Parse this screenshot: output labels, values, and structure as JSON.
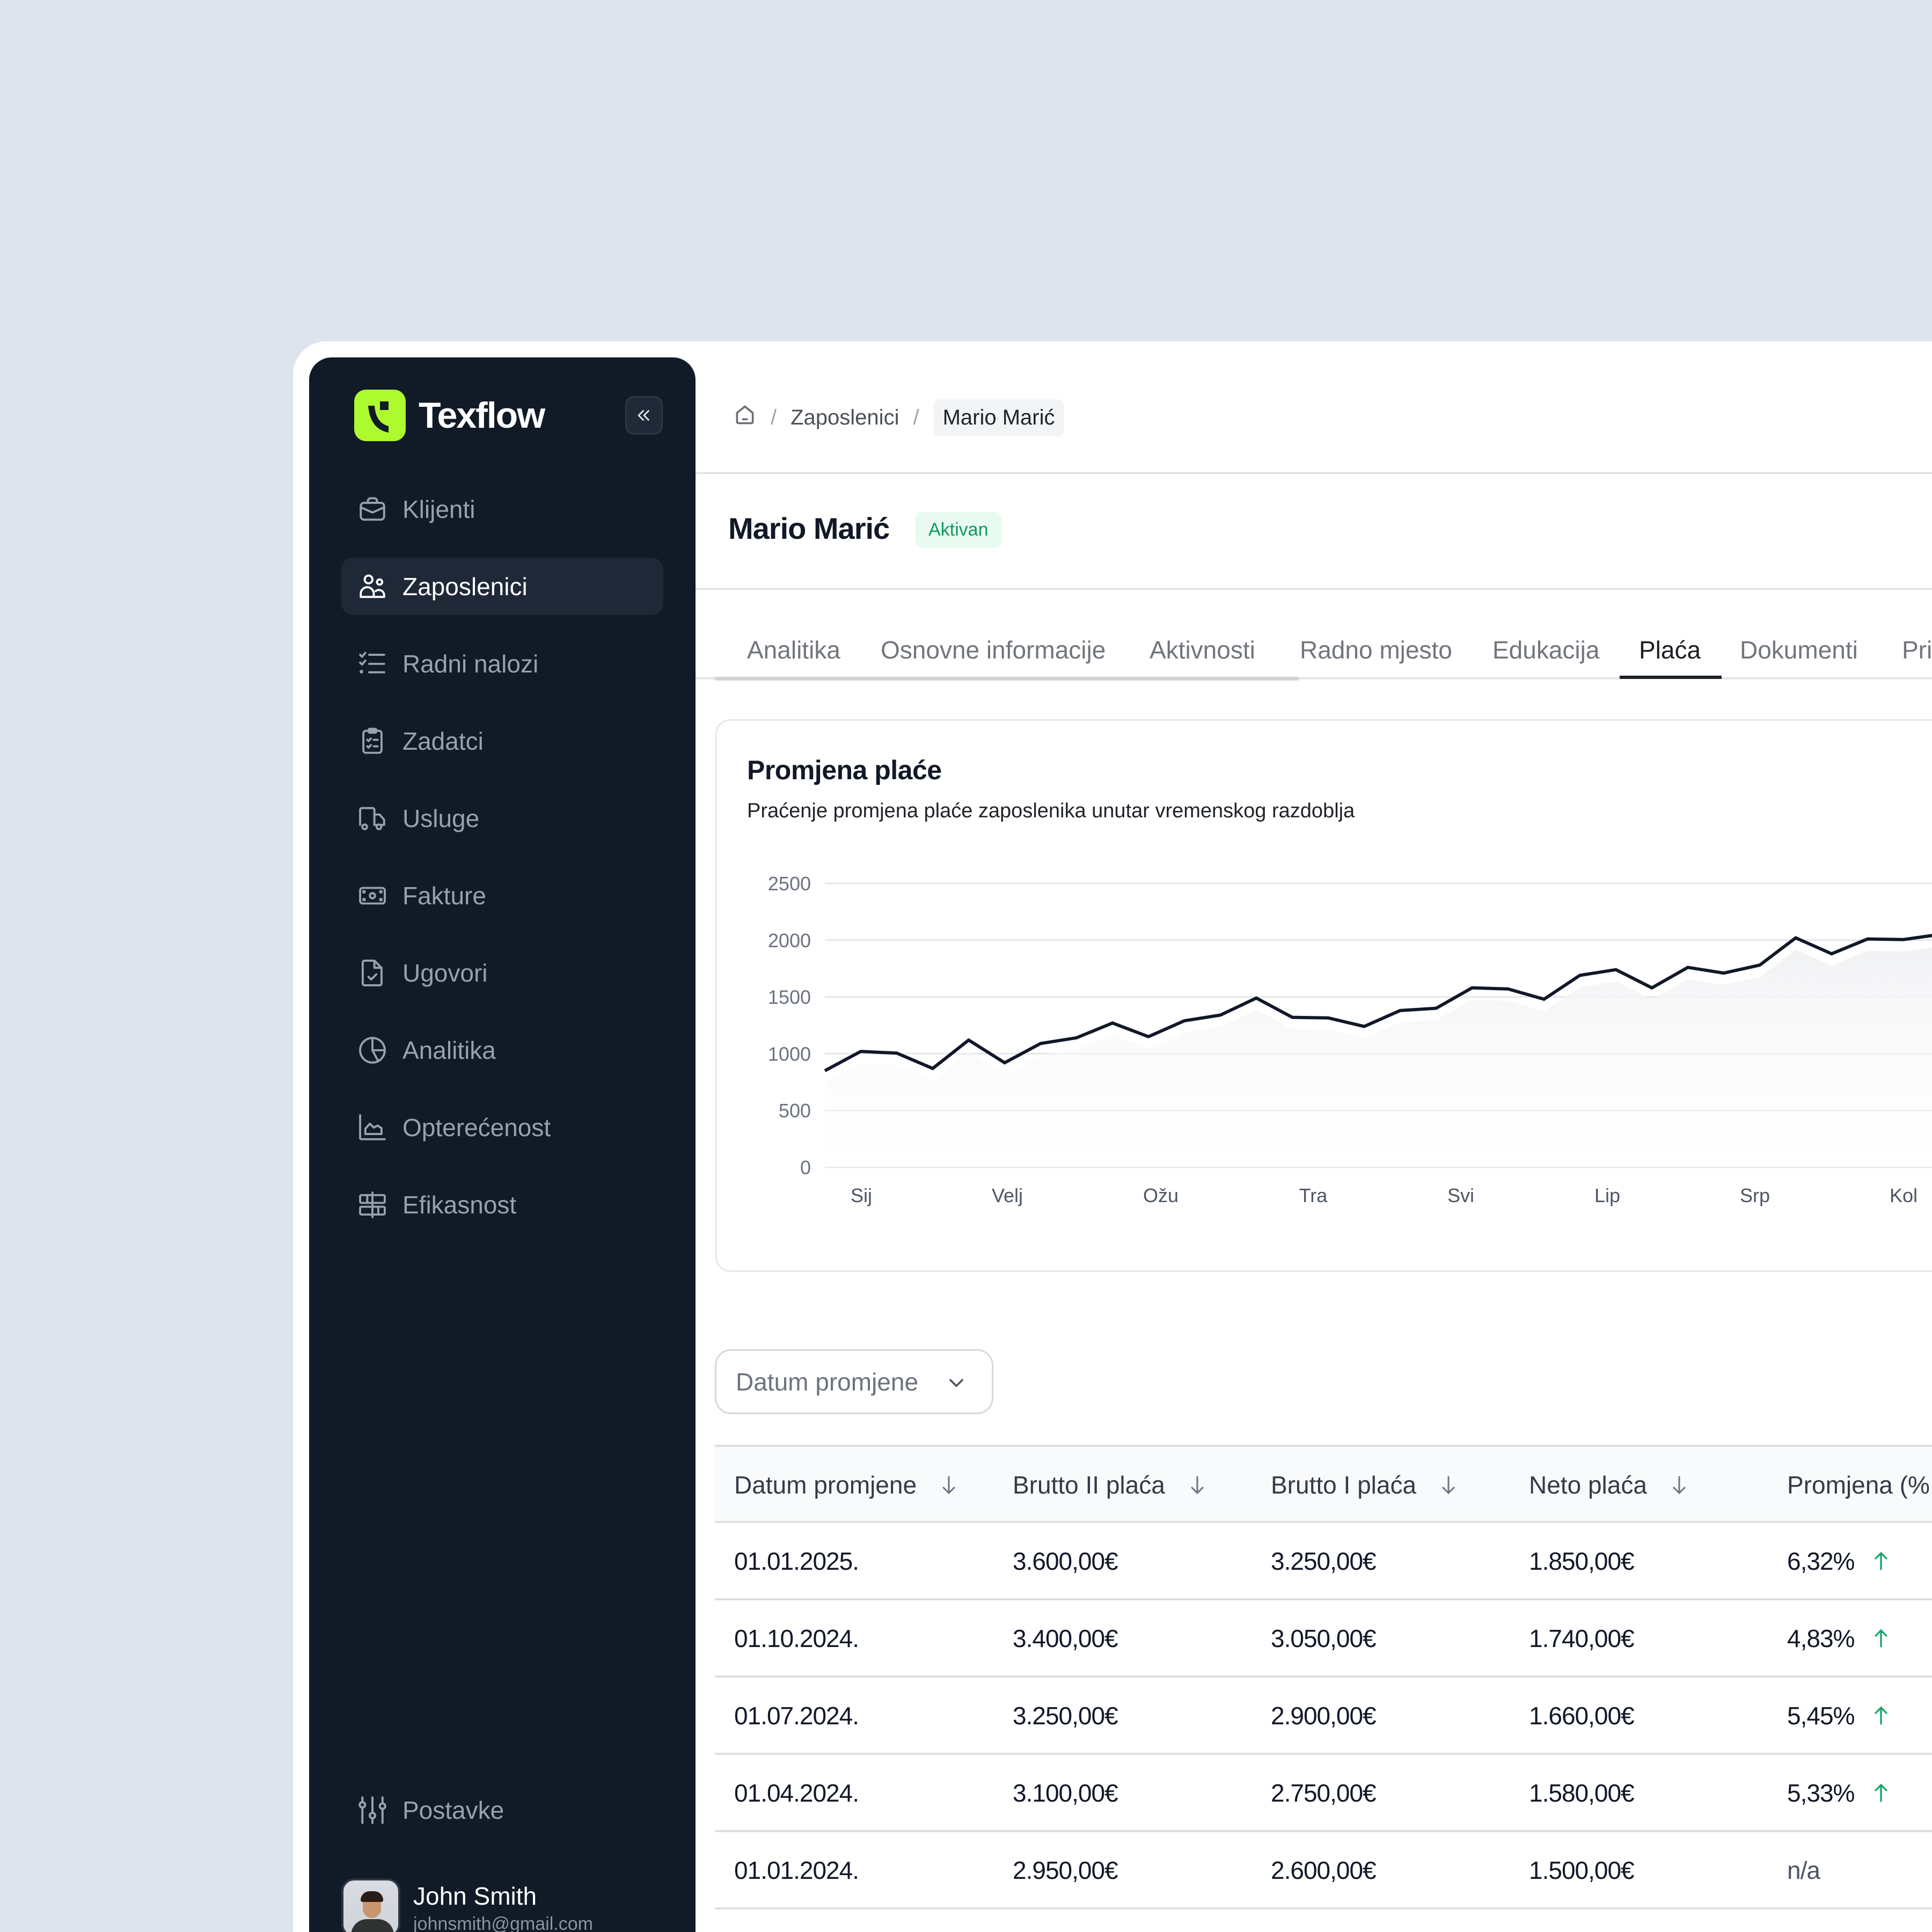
{
  "app": {
    "name": "Texflow",
    "logo_color": "#adfa2e",
    "sidebar_bg": "#111a27"
  },
  "sidebar": {
    "collapse_icon": "chevrons-left-icon",
    "items": [
      {
        "label": "Klijenti",
        "icon": "briefcase-icon",
        "active": false
      },
      {
        "label": "Zaposlenici",
        "icon": "users-icon",
        "active": true
      },
      {
        "label": "Radni nalozi",
        "icon": "checklist-icon",
        "active": false
      },
      {
        "label": "Zadatci",
        "icon": "clipboard-check-icon",
        "active": false
      },
      {
        "label": "Usluge",
        "icon": "truck-icon",
        "active": false
      },
      {
        "label": "Fakture",
        "icon": "banknote-icon",
        "active": false
      },
      {
        "label": "Ugovori",
        "icon": "file-check-icon",
        "active": false
      },
      {
        "label": "Analitika",
        "icon": "pie-chart-icon",
        "active": false
      },
      {
        "label": "Opterećenost",
        "icon": "area-chart-icon",
        "active": false
      },
      {
        "label": "Efikasnost",
        "icon": "grid-table-icon",
        "active": false
      }
    ],
    "settings": {
      "label": "Postavke",
      "icon": "sliders-icon"
    },
    "user": {
      "name": "John Smith",
      "email": "johnsmith@gmail.com"
    }
  },
  "breadcrumb": {
    "home_icon": "home-icon",
    "items": [
      "Zaposlenici",
      "Mario Marić"
    ],
    "separator": "/"
  },
  "header": {
    "title": "Mario Marić",
    "status": "Aktivan",
    "status_color": "#0f9a5e"
  },
  "tabs": [
    {
      "label": "Analitika",
      "active": false
    },
    {
      "label": "Osnovne informacije",
      "active": false
    },
    {
      "label": "Aktivnosti",
      "active": false
    },
    {
      "label": "Radno mjesto",
      "active": false
    },
    {
      "label": "Edukacija",
      "active": false
    },
    {
      "label": "Plaća",
      "active": true
    },
    {
      "label": "Dokumenti",
      "active": false
    },
    {
      "label": "Pri",
      "active": false
    }
  ],
  "chart_card": {
    "title": "Promjena plaće",
    "subtitle": "Praćenje promjena plaće zaposlenika unutar vremenskog razdoblja"
  },
  "chart_data": {
    "type": "area",
    "title": "Promjena plaće",
    "subtitle": "Praćenje promjena plaće zaposlenika unutar vremenskog razdoblja",
    "xlabel": "",
    "ylabel": "",
    "ylim": [
      0,
      2500
    ],
    "yticks": [
      0,
      500,
      1000,
      1500,
      2000,
      2500
    ],
    "xtick_labels": [
      "Sij",
      "Velj",
      "Ožu",
      "Tra",
      "Svi",
      "Lip",
      "Srp",
      "Kol"
    ],
    "grid": true,
    "legend": null,
    "line_color": "#111827",
    "fill_color": "#f3f4f6",
    "series": [
      {
        "name": "Plaća",
        "values": [
          850,
          1020,
          1005,
          870,
          1120,
          920,
          1090,
          1140,
          1270,
          1150,
          1290,
          1340,
          1490,
          1320,
          1315,
          1240,
          1380,
          1400,
          1580,
          1570,
          1480,
          1690,
          1740,
          1580,
          1760,
          1710,
          1780,
          2020,
          1880,
          2010,
          2005,
          2050
        ]
      }
    ]
  },
  "filter": {
    "label": "Datum promjene",
    "icon": "chevron-down-icon"
  },
  "table": {
    "columns": [
      "Datum promjene",
      "Brutto II plaća",
      "Brutto I plaća",
      "Neto plaća",
      "Promjena (%"
    ],
    "sort_icon": "arrow-down-icon",
    "rows": [
      {
        "date": "01.01.2025.",
        "brutto2": "3.600,00€",
        "brutto1": "3.250,00€",
        "neto": "1.850,00€",
        "change": "6,32%",
        "trend": "up"
      },
      {
        "date": "01.10.2024.",
        "brutto2": "3.400,00€",
        "brutto1": "3.050,00€",
        "neto": "1.740,00€",
        "change": "4,83%",
        "trend": "up"
      },
      {
        "date": "01.07.2024.",
        "brutto2": "3.250,00€",
        "brutto1": "2.900,00€",
        "neto": "1.660,00€",
        "change": "5,45%",
        "trend": "up"
      },
      {
        "date": "01.04.2024.",
        "brutto2": "3.100,00€",
        "brutto1": "2.750,00€",
        "neto": "1.580,00€",
        "change": "5,33%",
        "trend": "up"
      },
      {
        "date": "01.01.2024.",
        "brutto2": "2.950,00€",
        "brutto1": "2.600,00€",
        "neto": "1.500,00€",
        "change": "n/a",
        "trend": "none"
      }
    ],
    "up_color": "#16a56a"
  }
}
